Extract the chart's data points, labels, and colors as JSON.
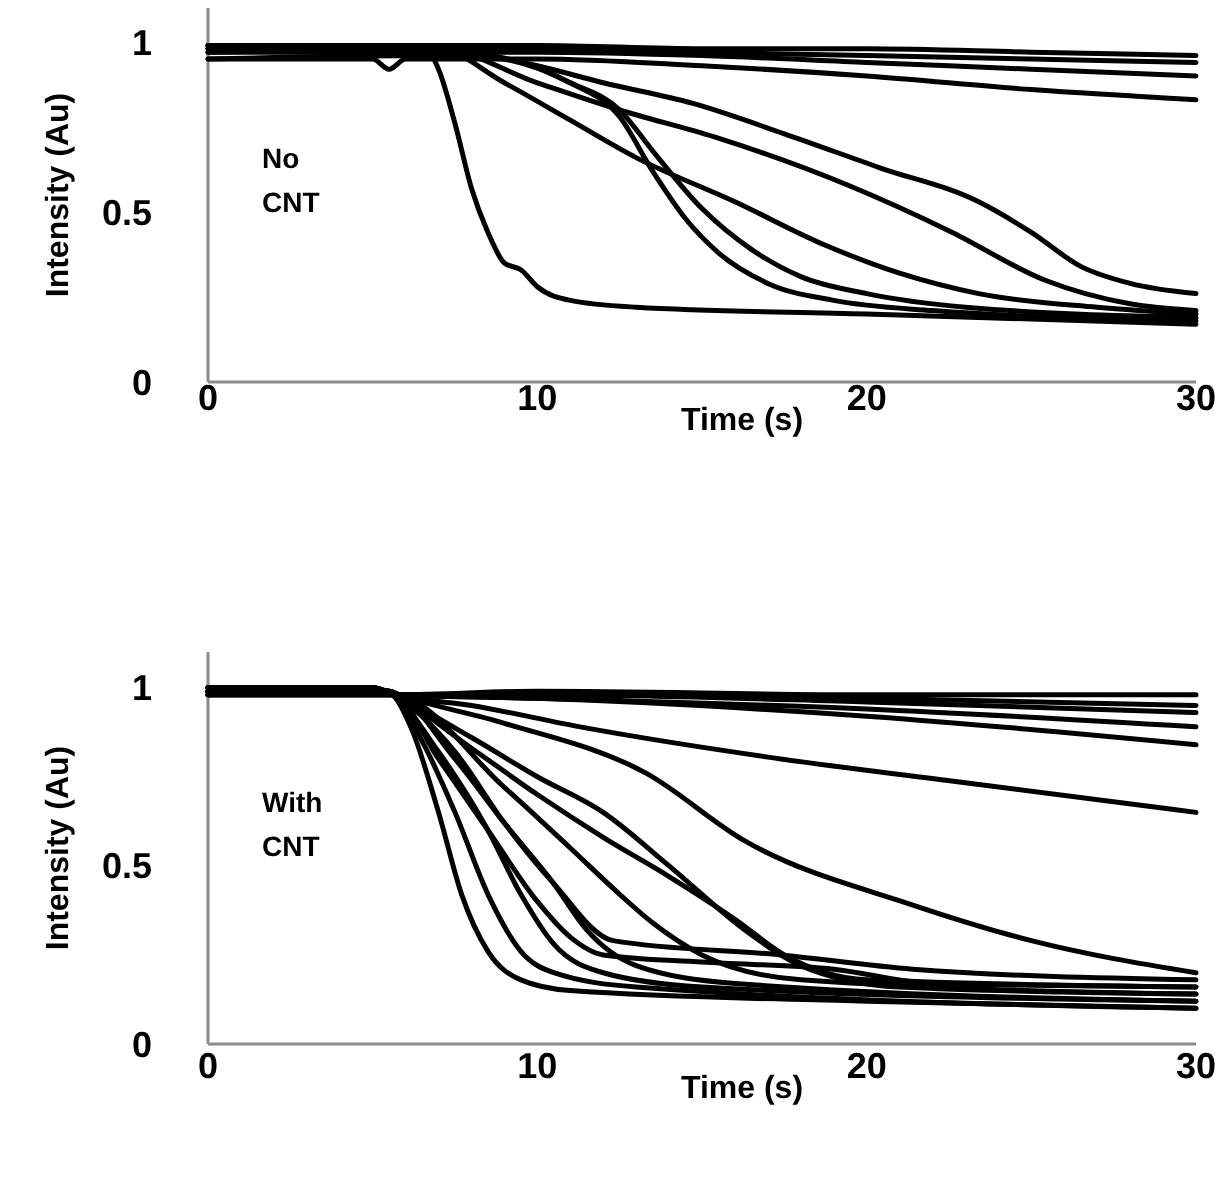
{
  "chart_data": [
    {
      "type": "line",
      "xlabel": "Time (s)",
      "ylabel": "Intensity (Au)",
      "annotations": [
        "No\nCNT"
      ],
      "xlim": [
        0,
        30
      ],
      "ylim": [
        0,
        1.1
      ],
      "xticks": [
        0,
        10,
        20,
        30
      ],
      "yticks": [
        0,
        0.5,
        1
      ],
      "series": [
        {
          "color": "#000000",
          "x": [
            0,
            5,
            10,
            15,
            20,
            25,
            30
          ],
          "values": [
            0.99,
            0.99,
            0.99,
            0.98,
            0.98,
            0.97,
            0.96
          ]
        },
        {
          "color": "#000000",
          "x": [
            0,
            5,
            10,
            15,
            20,
            25,
            30
          ],
          "values": [
            0.98,
            0.97,
            0.98,
            0.97,
            0.96,
            0.95,
            0.94
          ]
        },
        {
          "color": "#000000",
          "x": [
            0,
            5,
            10,
            15,
            20,
            25,
            30
          ],
          "values": [
            0.98,
            0.97,
            0.97,
            0.96,
            0.94,
            0.92,
            0.9
          ]
        },
        {
          "color": "#000000",
          "x": [
            0,
            5,
            5.5,
            6,
            10,
            15,
            20,
            25,
            30
          ],
          "values": [
            0.95,
            0.95,
            0.92,
            0.95,
            0.95,
            0.93,
            0.9,
            0.86,
            0.83
          ]
        },
        {
          "color": "#000000",
          "x": [
            0,
            6.6,
            7,
            7.5,
            8,
            8.5,
            9,
            9.5,
            10,
            11,
            13,
            20,
            30
          ],
          "values": [
            0.99,
            0.98,
            0.92,
            0.76,
            0.57,
            0.44,
            0.35,
            0.33,
            0.28,
            0.24,
            0.22,
            0.2,
            0.17
          ]
        },
        {
          "color": "#000000",
          "x": [
            0,
            7,
            9,
            11,
            12.5,
            13.5,
            14.5,
            15.5,
            17,
            19,
            22,
            30
          ],
          "values": [
            0.97,
            0.97,
            0.95,
            0.88,
            0.78,
            0.62,
            0.48,
            0.38,
            0.29,
            0.24,
            0.21,
            0.18
          ]
        },
        {
          "color": "#000000",
          "x": [
            0,
            7,
            9,
            11,
            12.5,
            13.5,
            15,
            16.5,
            18,
            20,
            23,
            30
          ],
          "values": [
            0.95,
            0.96,
            0.95,
            0.88,
            0.8,
            0.68,
            0.51,
            0.39,
            0.31,
            0.26,
            0.22,
            0.19
          ]
        },
        {
          "color": "#000000",
          "x": [
            0,
            7,
            9,
            11,
            13,
            16,
            18.8,
            21,
            23.4,
            27,
            30
          ],
          "values": [
            0.99,
            0.98,
            0.88,
            0.77,
            0.66,
            0.53,
            0.4,
            0.32,
            0.26,
            0.22,
            0.2
          ]
        },
        {
          "color": "#000000",
          "x": [
            0,
            7,
            10,
            12.5,
            15.4,
            19.4,
            22.6,
            25.4,
            28,
            30
          ],
          "values": [
            0.97,
            0.98,
            0.88,
            0.8,
            0.72,
            0.58,
            0.44,
            0.3,
            0.23,
            0.21
          ]
        },
        {
          "color": "#000000",
          "x": [
            0,
            7,
            10,
            12,
            14.7,
            17.5,
            20.4,
            23.4,
            25,
            26.5,
            28,
            30
          ],
          "values": [
            0.98,
            0.98,
            0.93,
            0.88,
            0.82,
            0.73,
            0.63,
            0.53,
            0.44,
            0.34,
            0.29,
            0.26
          ]
        }
      ]
    },
    {
      "type": "line",
      "xlabel": "Time (s)",
      "ylabel": "Intensity (Au)",
      "annotations": [
        "With\nCNT"
      ],
      "xlim": [
        0,
        30
      ],
      "ylim": [
        0,
        1.1
      ],
      "xticks": [
        0,
        10,
        20,
        30
      ],
      "yticks": [
        0,
        0.5,
        1
      ],
      "series": [
        {
          "color": "#000000",
          "x": [
            0,
            5.5,
            5.8,
            10,
            20,
            30
          ],
          "values": [
            0.99,
            0.99,
            0.98,
            0.99,
            0.98,
            0.98
          ]
        },
        {
          "color": "#000000",
          "x": [
            0,
            5.5,
            5.8,
            10,
            20,
            30
          ],
          "values": [
            0.99,
            0.99,
            0.98,
            0.98,
            0.97,
            0.95
          ]
        },
        {
          "color": "#000000",
          "x": [
            0,
            5.5,
            5.8,
            10,
            20,
            30
          ],
          "values": [
            0.99,
            0.99,
            0.98,
            0.98,
            0.96,
            0.93
          ]
        },
        {
          "color": "#000000",
          "x": [
            0,
            5.5,
            5.8,
            10,
            20,
            30
          ],
          "values": [
            0.99,
            0.99,
            0.98,
            0.97,
            0.94,
            0.89
          ]
        },
        {
          "color": "#000000",
          "x": [
            0,
            5.5,
            5.8,
            10,
            20,
            30
          ],
          "values": [
            0.99,
            0.99,
            0.98,
            0.97,
            0.92,
            0.84
          ]
        },
        {
          "color": "#000000",
          "x": [
            0,
            5.5,
            5.8,
            8,
            11.3,
            17.4,
            22.4,
            30
          ],
          "values": [
            0.99,
            0.99,
            0.98,
            0.95,
            0.89,
            0.8,
            0.74,
            0.65
          ]
        },
        {
          "color": "#000000",
          "x": [
            0,
            5.5,
            5.8,
            9,
            13.3,
            16.3,
            21.4,
            25,
            30
          ],
          "values": [
            0.99,
            0.99,
            0.98,
            0.9,
            0.76,
            0.57,
            0.39,
            0.29,
            0.2
          ]
        },
        {
          "color": "#000000",
          "x": [
            0,
            5,
            5.6,
            6.2,
            7,
            7.7,
            8.5,
            9.5,
            11,
            20,
            30
          ],
          "values": [
            1.0,
            1.0,
            0.98,
            0.88,
            0.65,
            0.42,
            0.26,
            0.18,
            0.15,
            0.12,
            0.1
          ]
        },
        {
          "color": "#000000",
          "x": [
            0,
            5,
            5.6,
            6.5,
            7.5,
            8.5,
            9.5,
            10.5,
            13,
            30
          ],
          "values": [
            0.98,
            0.98,
            0.98,
            0.85,
            0.65,
            0.42,
            0.26,
            0.2,
            0.16,
            0.1
          ]
        },
        {
          "color": "#000000",
          "x": [
            0,
            5,
            5.6,
            7,
            8.5,
            9.5,
            10.5,
            12,
            15,
            30
          ],
          "values": [
            1.0,
            1.0,
            0.98,
            0.82,
            0.6,
            0.42,
            0.28,
            0.2,
            0.16,
            0.12
          ]
        },
        {
          "color": "#000000",
          "x": [
            0,
            5,
            5.6,
            7.5,
            9,
            10.5,
            11.5,
            13,
            16,
            30
          ],
          "values": [
            0.98,
            0.98,
            0.98,
            0.8,
            0.62,
            0.45,
            0.32,
            0.22,
            0.17,
            0.12
          ]
        },
        {
          "color": "#000000",
          "x": [
            0,
            5,
            5.6,
            7.5,
            9,
            10.5,
            12.3,
            17.4,
            21.4,
            30
          ],
          "values": [
            1.0,
            1.0,
            0.98,
            0.82,
            0.62,
            0.45,
            0.29,
            0.25,
            0.21,
            0.18
          ]
        },
        {
          "color": "#000000",
          "x": [
            0,
            5,
            5.6,
            8,
            10,
            12,
            14,
            16.3,
            18,
            21,
            30
          ],
          "values": [
            1.0,
            1.0,
            0.98,
            0.86,
            0.75,
            0.65,
            0.5,
            0.32,
            0.22,
            0.16,
            0.14
          ]
        },
        {
          "color": "#000000",
          "x": [
            0,
            5,
            5.6,
            8,
            10,
            12,
            14,
            16,
            17.5,
            20,
            30
          ],
          "values": [
            1.0,
            1.0,
            0.98,
            0.83,
            0.7,
            0.58,
            0.47,
            0.35,
            0.25,
            0.18,
            0.16
          ]
        },
        {
          "color": "#000000",
          "x": [
            0,
            5,
            5.6,
            7,
            8.5,
            10,
            11,
            12,
            15,
            19,
            22,
            30
          ],
          "values": [
            0.98,
            0.98,
            0.98,
            0.8,
            0.6,
            0.4,
            0.3,
            0.25,
            0.23,
            0.21,
            0.17,
            0.16
          ]
        },
        {
          "color": "#000000",
          "x": [
            0,
            5,
            5.6,
            9,
            11,
            12.5,
            13.5,
            15,
            18,
            30
          ],
          "values": [
            0.98,
            0.98,
            0.98,
            0.72,
            0.55,
            0.42,
            0.34,
            0.25,
            0.18,
            0.14
          ]
        }
      ]
    }
  ]
}
